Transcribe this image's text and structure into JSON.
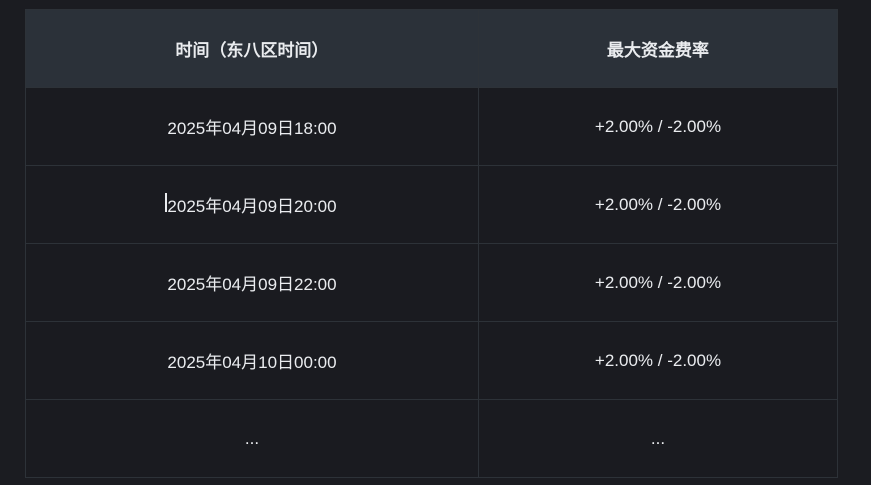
{
  "table": {
    "headers": [
      "时间（东八区时间）",
      "最大资金费率"
    ],
    "rows": [
      [
        "2025年04月09日18:00",
        "+2.00% / -2.00%"
      ],
      [
        "2025年04月09日20:00",
        "+2.00% / -2.00%"
      ],
      [
        "2025年04月09日22:00",
        "+2.00% / -2.00%"
      ],
      [
        "2025年04月10日00:00",
        "+2.00% / -2.00%"
      ],
      [
        "...",
        "..."
      ]
    ]
  }
}
